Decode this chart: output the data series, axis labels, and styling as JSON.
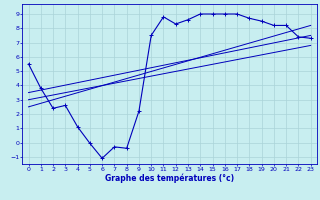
{
  "xlabel": "Graphe des températures (°c)",
  "bg_color": "#c8eef0",
  "line_color": "#0000bb",
  "grid_color": "#aad4d8",
  "xlim": [
    -0.5,
    23.5
  ],
  "ylim": [
    -1.5,
    9.7
  ],
  "xticks": [
    0,
    1,
    2,
    3,
    4,
    5,
    6,
    7,
    8,
    9,
    10,
    11,
    12,
    13,
    14,
    15,
    16,
    17,
    18,
    19,
    20,
    21,
    22,
    23
  ],
  "yticks": [
    -1,
    0,
    1,
    2,
    3,
    4,
    5,
    6,
    7,
    8,
    9
  ],
  "main_curve_x": [
    0,
    1,
    2,
    3,
    4,
    5,
    6,
    7,
    8,
    9,
    10,
    11,
    12,
    13,
    14,
    15,
    16,
    17,
    18,
    19,
    20,
    21,
    22,
    23
  ],
  "main_curve_y": [
    5.5,
    3.8,
    2.4,
    2.6,
    1.1,
    -0.05,
    -1.1,
    -0.3,
    -0.4,
    2.2,
    7.5,
    8.8,
    8.3,
    8.6,
    9.0,
    9.0,
    9.0,
    9.0,
    8.7,
    8.5,
    8.2,
    8.2,
    7.4,
    7.3
  ],
  "line2_x": [
    0,
    23
  ],
  "line2_y": [
    3.5,
    7.5
  ],
  "line3_x": [
    0,
    23
  ],
  "line3_y": [
    2.5,
    8.2
  ],
  "line4_x": [
    0,
    23
  ],
  "line4_y": [
    3.0,
    6.8
  ]
}
